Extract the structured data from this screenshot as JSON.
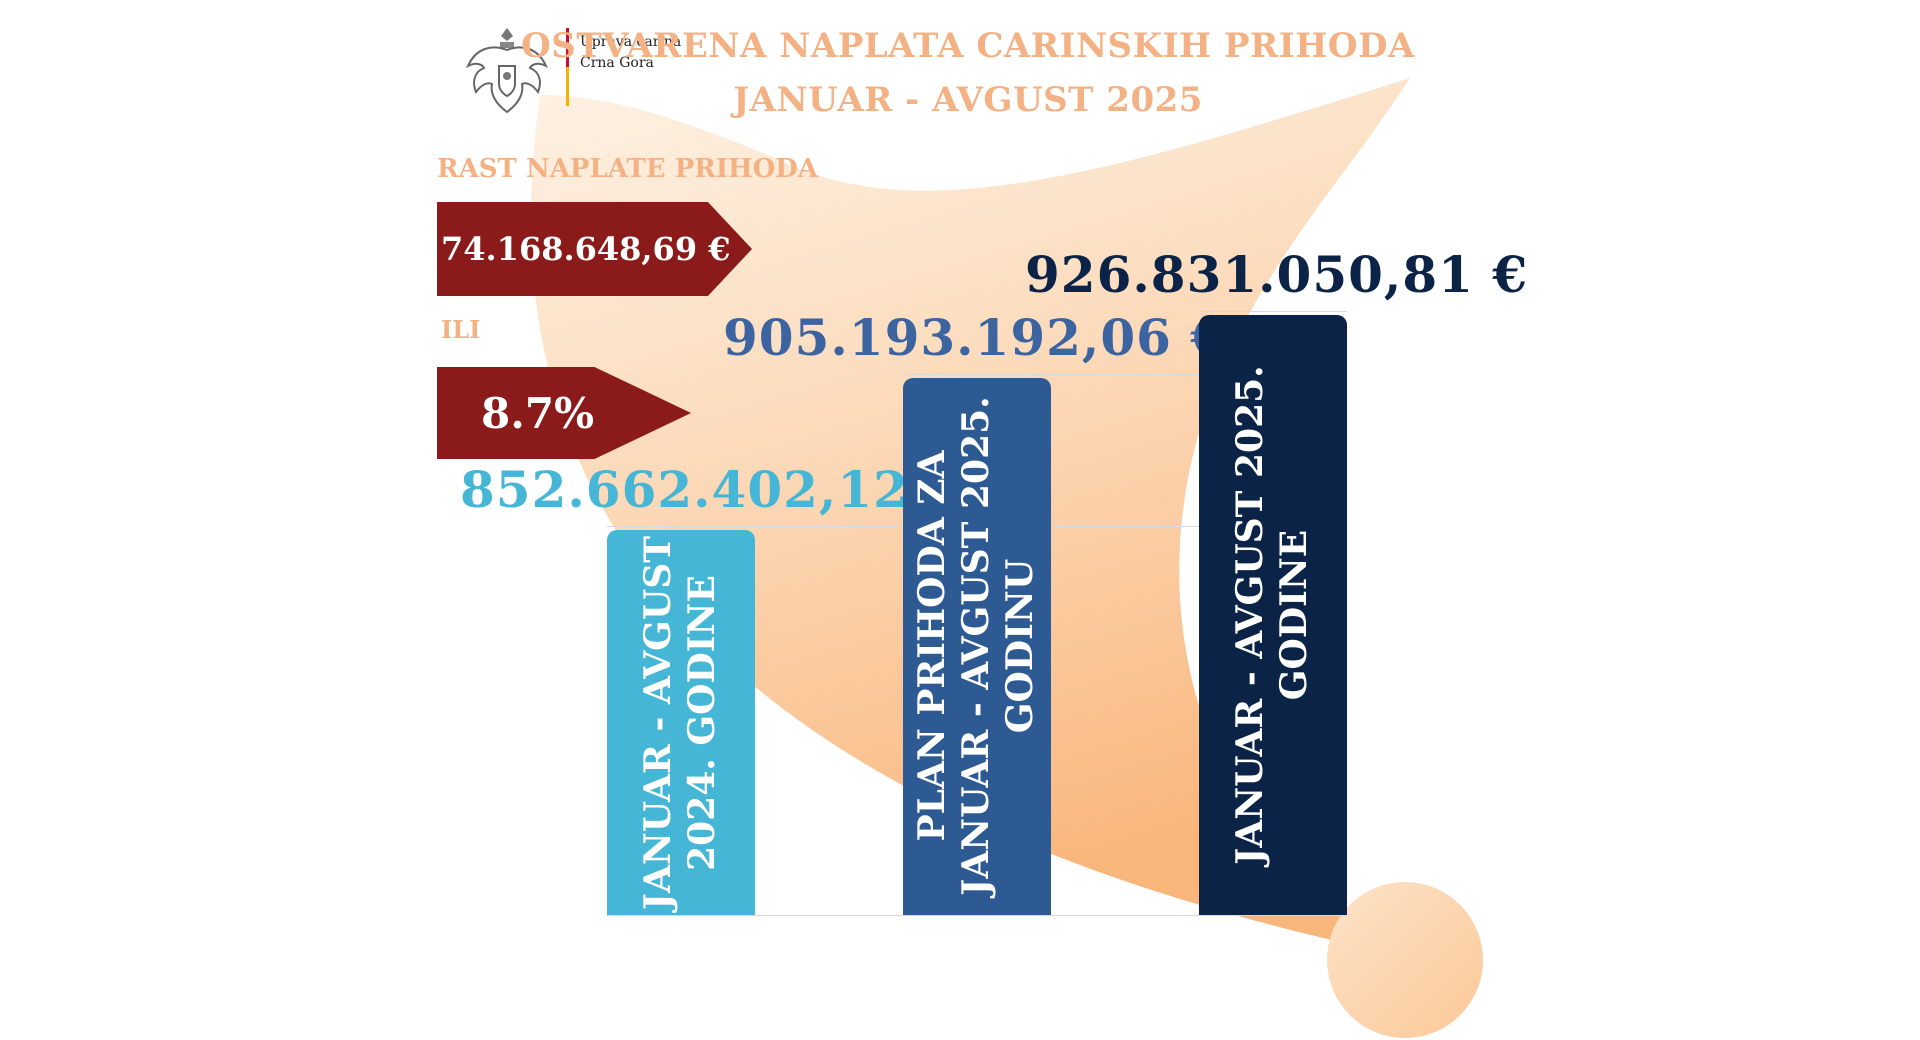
{
  "header": {
    "org_line1": "Uprava carina",
    "org_line2": "Crna Gora",
    "title_line1": "OSTVARENA NAPLATA CARINSKIH PRIHODA",
    "title_line2": "JANUAR - AVGUST 2025"
  },
  "growth": {
    "title": "RAST NAPLATE PRIHODA",
    "amount": "74.168.648,69 €",
    "connector": "ILI",
    "percent": "8.7%"
  },
  "chart_data": {
    "type": "bar",
    "categories": [
      [
        "JANUAR - AVGUST",
        "2024. GODINE"
      ],
      [
        "PLAN PRIHODA ZA",
        "JANUAR - AVGUST 2025.",
        "GODINU"
      ],
      [
        "JANUAR - AVGUST  2025.",
        "GODINE"
      ]
    ],
    "values": [
      852662402.12,
      905193192.06,
      926831050.81
    ],
    "value_labels": [
      "852.662.402,12 €",
      "905.193.192,06 €",
      "926.831.050,81 €"
    ],
    "colors": [
      "#45b6d6",
      "#2e5a94",
      "#0b2346"
    ],
    "label_colors": [
      "#45b6d6",
      "#3b64a0",
      "#0b2346"
    ],
    "ylim": [
      720000000,
      950000000
    ],
    "grid": true
  }
}
